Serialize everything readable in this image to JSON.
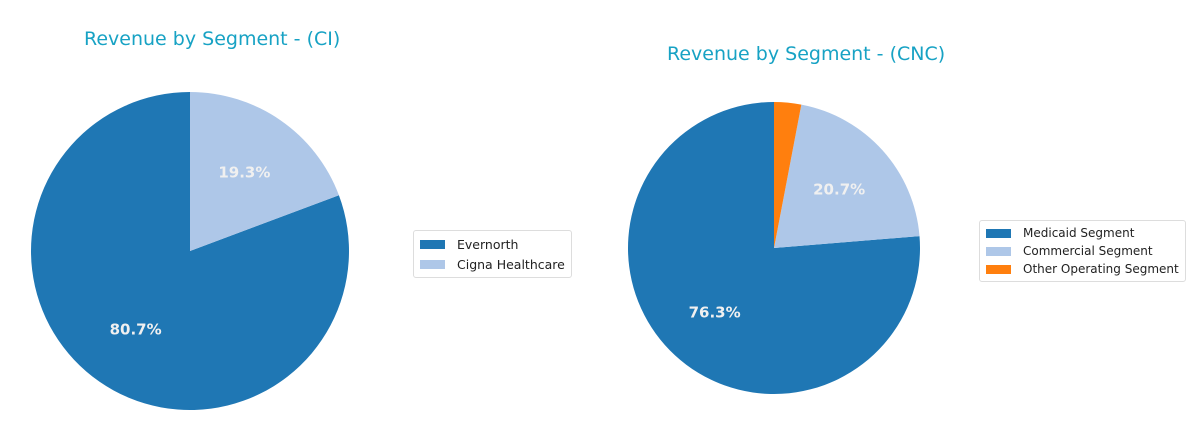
{
  "chart_data": [
    {
      "type": "pie",
      "title": "Revenue by Segment - (CI)",
      "labels": [
        "Evernorth",
        "Cigna Healthcare"
      ],
      "values": [
        80.7,
        19.3
      ],
      "value_labels": [
        "80.7%",
        "19.3%"
      ],
      "colors": [
        "#1f77b4",
        "#aec7e8"
      ],
      "legend_position": "right"
    },
    {
      "type": "pie",
      "title": "Revenue by Segment - (CNC)",
      "labels": [
        "Medicaid Segment",
        "Commercial Segment",
        "Other Operating Segment"
      ],
      "values": [
        76.3,
        20.7,
        3.0
      ],
      "value_labels": [
        "76.3%",
        "20.7%",
        ""
      ],
      "colors": [
        "#1f77b4",
        "#aec7e8",
        "#ff7f0e"
      ],
      "legend_position": "right"
    }
  ],
  "charts": [
    {
      "title": "Revenue by Segment - (CI)",
      "legend": [
        "Evernorth",
        "Cigna Healthcare"
      ]
    },
    {
      "title": "Revenue by Segment - (CNC)",
      "legend": [
        "Medicaid Segment",
        "Commercial Segment",
        "Other Operating Segment"
      ]
    }
  ]
}
